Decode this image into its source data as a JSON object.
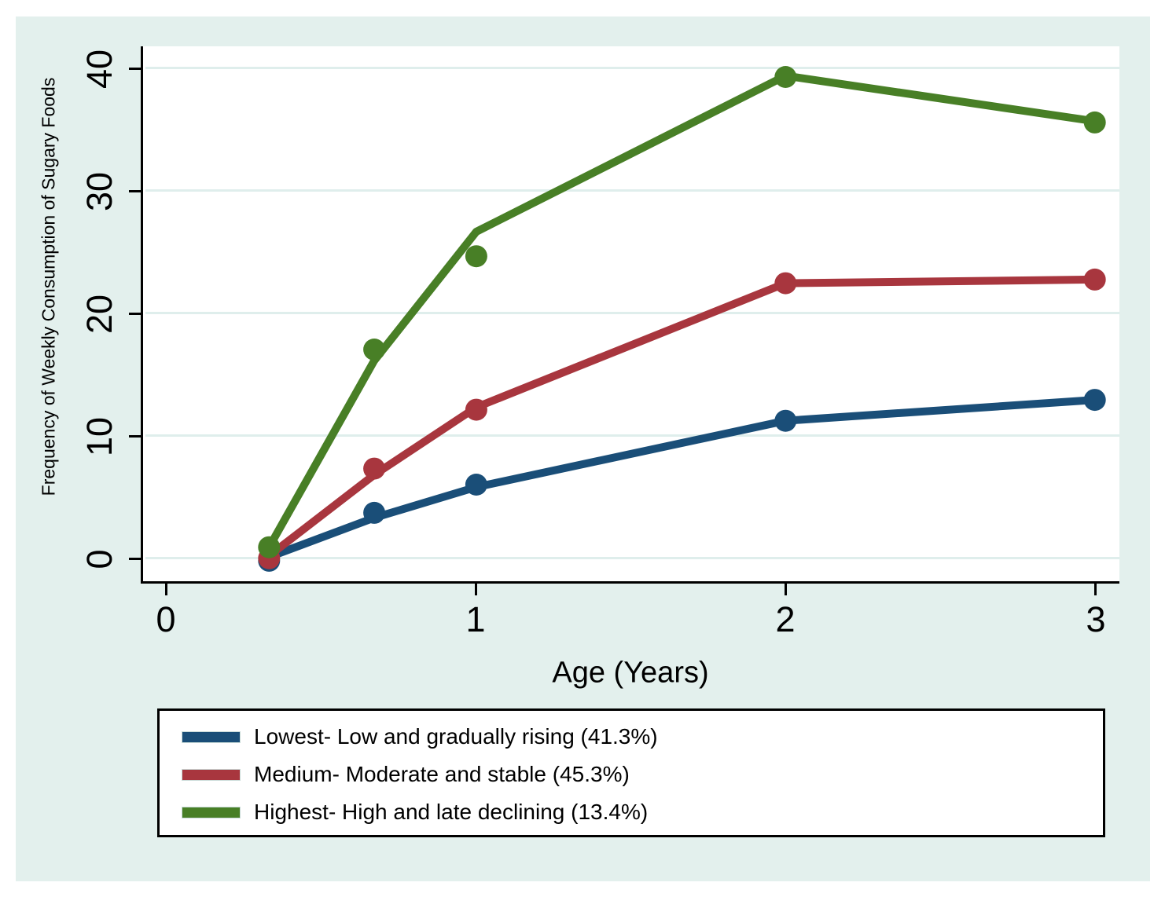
{
  "figure": {
    "background_color": "#e3f0ed",
    "plot_background_color": "#ffffff",
    "gridline_color": "#dfeeec"
  },
  "axes": {
    "x_title": "Age (Years)",
    "y_title": "Frequency of Weekly Consumption of Sugary Foods",
    "x_tick_labels": [
      "0",
      "1",
      "2",
      "3"
    ],
    "y_tick_labels": [
      "0",
      "10",
      "20",
      "30",
      "40"
    ]
  },
  "chart_data": {
    "type": "line",
    "title": "",
    "xlabel": "Age (Years)",
    "ylabel": "Frequency of Weekly Consumption of Sugary Foods",
    "xlim": [
      -0.08,
      3.08
    ],
    "ylim": [
      -1.9,
      41.8
    ],
    "x_tick_values": [
      0,
      1,
      2,
      3
    ],
    "y_tick_values": [
      0,
      10,
      20,
      30,
      40
    ],
    "grid": "horizontal-only",
    "legend_position": "bottom-box",
    "observation_ages_years": [
      0.33,
      0.67,
      1,
      2,
      3
    ],
    "series": [
      {
        "name": "Lowest- Low and gradually rising (41.3%)",
        "share_percent": 41.3,
        "color": "#1a4e78",
        "fitted_line": [
          [
            0.33,
            0.2
          ],
          [
            0.67,
            3.4
          ],
          [
            1,
            5.9
          ],
          [
            2,
            11.3
          ],
          [
            3,
            13.0
          ]
        ],
        "observed_points": [
          [
            0.33,
            -0.1
          ],
          [
            0.67,
            3.8
          ],
          [
            1,
            6.1
          ],
          [
            2,
            11.3
          ],
          [
            3,
            13.0
          ]
        ]
      },
      {
        "name": "Medium- Moderate and stable (45.3%)",
        "share_percent": 45.3,
        "color": "#a8363e",
        "fitted_line": [
          [
            0.33,
            0.3
          ],
          [
            0.67,
            6.9
          ],
          [
            1,
            12.4
          ],
          [
            2,
            22.5
          ],
          [
            3,
            22.8
          ]
        ],
        "observed_points": [
          [
            0.33,
            0.1
          ],
          [
            0.67,
            7.4
          ],
          [
            1,
            12.2
          ],
          [
            2,
            22.5
          ],
          [
            3,
            22.8
          ]
        ]
      },
      {
        "name": "Highest- High and late declining (13.4%)",
        "share_percent": 13.4,
        "color": "#487f26",
        "fitted_line": [
          [
            0.33,
            1.0
          ],
          [
            0.67,
            16.2
          ],
          [
            1,
            26.7
          ],
          [
            2,
            39.4
          ],
          [
            3,
            35.7
          ]
        ],
        "observed_points": [
          [
            0.33,
            1.0
          ],
          [
            0.67,
            17.1
          ],
          [
            1,
            24.7
          ],
          [
            2,
            39.3
          ],
          [
            3,
            35.6
          ]
        ]
      }
    ]
  }
}
